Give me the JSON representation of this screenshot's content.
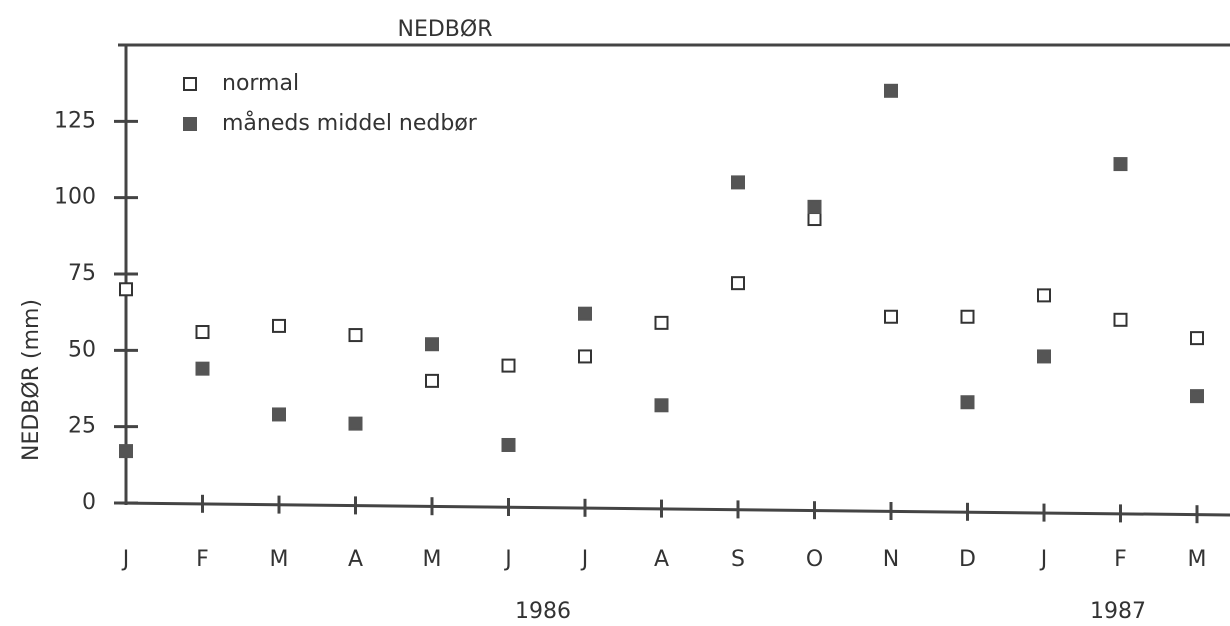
{
  "chart_data": {
    "type": "scatter",
    "title": "NEDBØR",
    "y_label": "NEDBØR (mm)",
    "categories": [
      "J",
      "F",
      "M",
      "A",
      "M",
      "J",
      "J",
      "A",
      "S",
      "O",
      "N",
      "D",
      "J",
      "F",
      "M"
    ],
    "annotations": [
      "1986",
      "1987"
    ],
    "series": [
      {
        "name": "normal",
        "color": "#333333",
        "marker": "open-square",
        "values": [
          70,
          56,
          58,
          55,
          40,
          45,
          48,
          59,
          72,
          93,
          61,
          61,
          68,
          60,
          54
        ]
      },
      {
        "name": "måneds middel nedbør",
        "color": "#555555",
        "marker": "filled-square",
        "values": [
          17,
          44,
          29,
          26,
          52,
          19,
          62,
          32,
          105,
          97,
          135,
          33,
          48,
          111,
          35
        ]
      }
    ],
    "ylim": [
      0,
      150
    ],
    "yticks": [
      0,
      25,
      50,
      75,
      100,
      125
    ],
    "legend": "upper left"
  }
}
